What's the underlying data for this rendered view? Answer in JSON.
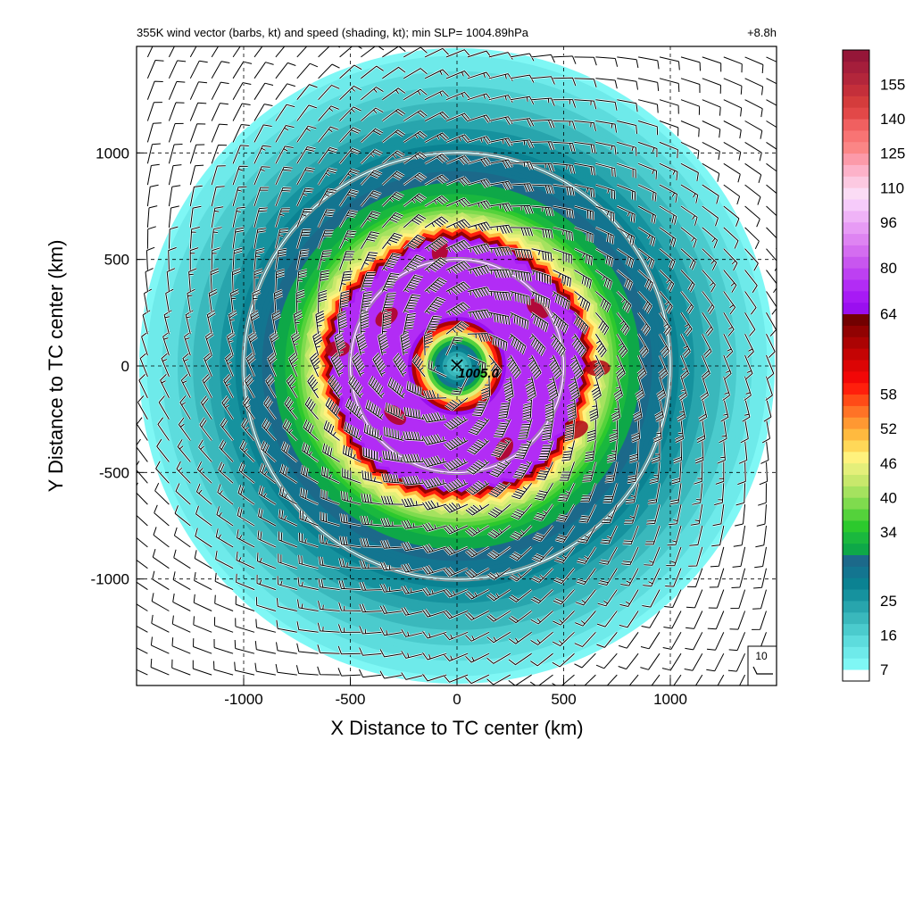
{
  "chart_data": {
    "type": "heatmap",
    "title": "355K wind vector (barbs, kt) and speed (shading, kt); min SLP= 1004.89hPa",
    "time_label": "+8.8h",
    "xlabel": "X Distance to TC center (km)",
    "ylabel": "Y Distance to TC center (km)",
    "xlim": [
      -1500,
      1500
    ],
    "ylim": [
      -1500,
      1500
    ],
    "x_ticks": [
      -1000,
      -500,
      0,
      500,
      1000
    ],
    "y_ticks": [
      1000,
      500,
      0,
      -500,
      -1000
    ],
    "x_tick_labels": [
      "-1000",
      "-500",
      "0",
      "500",
      "1000"
    ],
    "y_tick_labels": [
      "1000",
      "500",
      "0",
      "-500",
      "-1000"
    ],
    "grid": "dashed",
    "range_rings_km": [
      500,
      1000
    ],
    "center_marker": "x",
    "center_label": "1005.0",
    "reference_barb": {
      "label": "10",
      "speed_kt": 10
    },
    "colorbar": {
      "labels": [
        "7",
        "16",
        "25",
        "34",
        "40",
        "46",
        "52",
        "58",
        "64",
        "80",
        "96",
        "110",
        "125",
        "140",
        "155"
      ],
      "colors": [
        "#ffffff",
        "#7ff7f5",
        "#6eeaea",
        "#5ddcdd",
        "#4bcbcd",
        "#3ab8bc",
        "#28a5ad",
        "#16929e",
        "#0b8292",
        "#137590",
        "#1c698a",
        "#0ea848",
        "#1ab83e",
        "#2cc92d",
        "#54d23b",
        "#7fdb4e",
        "#a5e25f",
        "#c8e86c",
        "#e4ef7a",
        "#fff27d",
        "#ffd858",
        "#ffba3f",
        "#ff9832",
        "#ff7326",
        "#ff4b17",
        "#ff1f0c",
        "#f20707",
        "#dc0505",
        "#c40404",
        "#ab0303",
        "#910202",
        "#720101",
        "#9a0ff0",
        "#a71af5",
        "#b22cf5",
        "#bd40f2",
        "#c856ef",
        "#d46df0",
        "#de84f2",
        "#e79bf5",
        "#efb3f7",
        "#f6cbfa",
        "#fbdcf5",
        "#fcc9e1",
        "#fdb2c9",
        "#fc9aa9",
        "#fb8686",
        "#f87474",
        "#f06060",
        "#e24848",
        "#d43c3c",
        "#c42f3a",
        "#b3263b",
        "#a51e3b",
        "#951638"
      ]
    },
    "wind_field": {
      "description_units": "kt",
      "radial_profile": [
        {
          "r_km": 0,
          "speed_kt": 12
        },
        {
          "r_km": 100,
          "speed_kt": 28
        },
        {
          "r_km": 180,
          "speed_kt": 52
        },
        {
          "r_km": 250,
          "speed_kt": 72
        },
        {
          "r_km": 420,
          "speed_kt": 72
        },
        {
          "r_km": 570,
          "speed_kt": 70
        },
        {
          "r_km": 640,
          "speed_kt": 46
        },
        {
          "r_km": 760,
          "speed_kt": 36
        },
        {
          "r_km": 900,
          "speed_kt": 30
        },
        {
          "r_km": 1150,
          "speed_kt": 20
        },
        {
          "r_km": 1500,
          "speed_kt": 8
        }
      ]
    }
  }
}
